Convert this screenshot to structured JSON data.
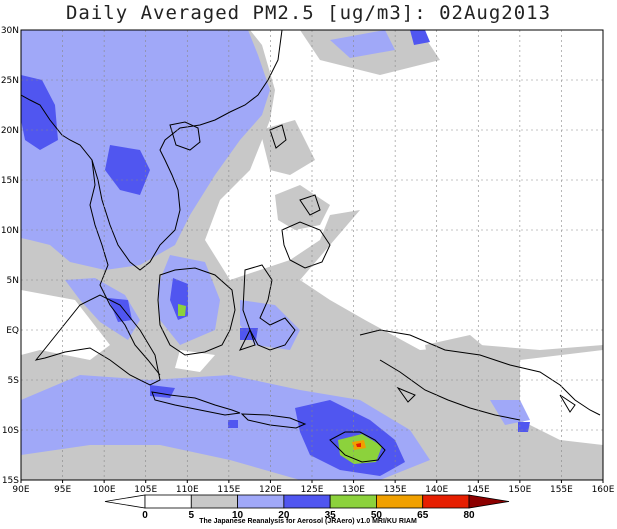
{
  "title": "Daily Averaged PM2.5 [ug/m3]: 02Aug2013",
  "map": {
    "lon_range": [
      90,
      160
    ],
    "lat_range": [
      -15,
      30
    ],
    "grid": true,
    "lon_ticks": [
      "90E",
      "95E",
      "100E",
      "105E",
      "110E",
      "115E",
      "120E",
      "125E",
      "130E",
      "135E",
      "140E",
      "145E",
      "150E",
      "155E",
      "160E"
    ],
    "lat_ticks": [
      "30N",
      "25N",
      "20N",
      "15N",
      "10N",
      "5N",
      "EQ",
      "5S",
      "10S",
      "15S"
    ]
  },
  "colorbar": {
    "levels": [
      "0",
      "5",
      "10",
      "20",
      "35",
      "50",
      "65",
      "80"
    ],
    "colors": [
      "#ffffff",
      "#ffffff",
      "#c8c8c8",
      "#a0a8f8",
      "#5056f0",
      "#8cd23c",
      "#f0a000",
      "#e61e00",
      "#8c0000"
    ]
  },
  "colors": {
    "gray": "#c8c8c8",
    "lightblue": "#a0a8f8",
    "blue": "#5056f0",
    "green": "#8cd23c",
    "orange": "#f0a000",
    "red": "#e61e00"
  },
  "credit": "The Japanese Reanalysis for Aerosol (JRAero) v1.0 MRI/KU RIAM"
}
